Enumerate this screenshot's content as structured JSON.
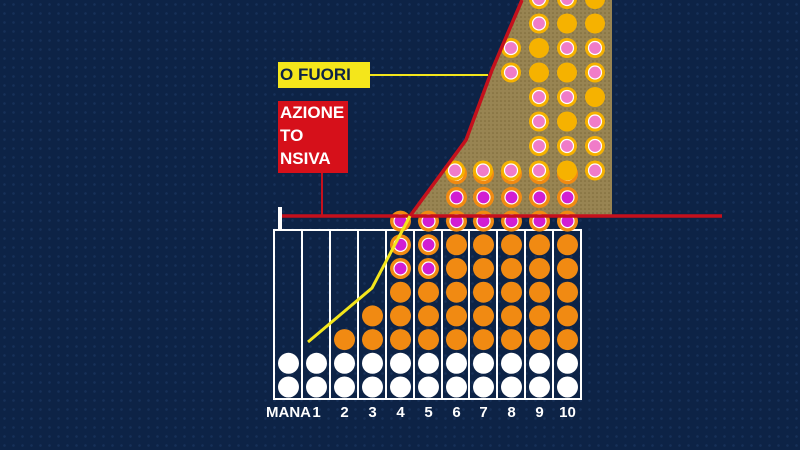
{
  "labels": {
    "yellow_box": "O FUORI",
    "red_box_lines": [
      "AZIONE",
      "TO",
      "NSIVA"
    ]
  },
  "chart_data": {
    "type": "bar",
    "categories": [
      "MANA",
      "1",
      "2",
      "3",
      "4",
      "5",
      "6",
      "7",
      "8",
      "9",
      "10"
    ],
    "series": [
      {
        "values": [
          2,
          2,
          2,
          2,
          2,
          2,
          2,
          2,
          2,
          2,
          2
        ]
      },
      {
        "values": [
          0,
          0,
          1,
          2,
          3,
          3,
          5,
          5,
          5,
          5,
          5
        ]
      },
      {
        "values": [
          0,
          0,
          0,
          0,
          3,
          3,
          3,
          3,
          3,
          3,
          3
        ]
      }
    ],
    "overflow_columns": {
      "categories": [
        "4",
        "5",
        "6",
        "7",
        "8",
        "9",
        "10"
      ],
      "rows_from_bottom": [
        [
          "",
          "",
          "",
          "",
          "",
          "",
          ""
        ],
        [
          "",
          "C",
          "C",
          "C",
          "C",
          "O",
          "C"
        ],
        [
          "",
          "",
          "",
          "",
          "C",
          "C",
          "C"
        ],
        [
          "",
          "",
          "",
          "",
          "C",
          "O",
          "C"
        ],
        [
          "",
          "",
          "",
          "",
          "C",
          "C",
          "O"
        ],
        [
          "",
          "",
          "",
          "C",
          "O",
          "O",
          "C"
        ],
        [
          "",
          "",
          "",
          "C",
          "O",
          "C",
          "C"
        ],
        [
          "",
          "",
          "",
          "",
          "C",
          "O",
          "O"
        ],
        [
          "",
          "",
          "",
          "",
          "C",
          "C",
          "O"
        ]
      ]
    },
    "colors": {
      "white_dot": "#ffffff",
      "orange_dot": "#f18a12",
      "magenta_dot": "#d21ed3",
      "overflow_core": "#f07cc8",
      "overflow_ring": "#f6b200",
      "overflow_area": "#a08a53",
      "threshold_line": "#c5101c",
      "trend_line": "#f4e61b",
      "background": "#0d2346"
    }
  }
}
